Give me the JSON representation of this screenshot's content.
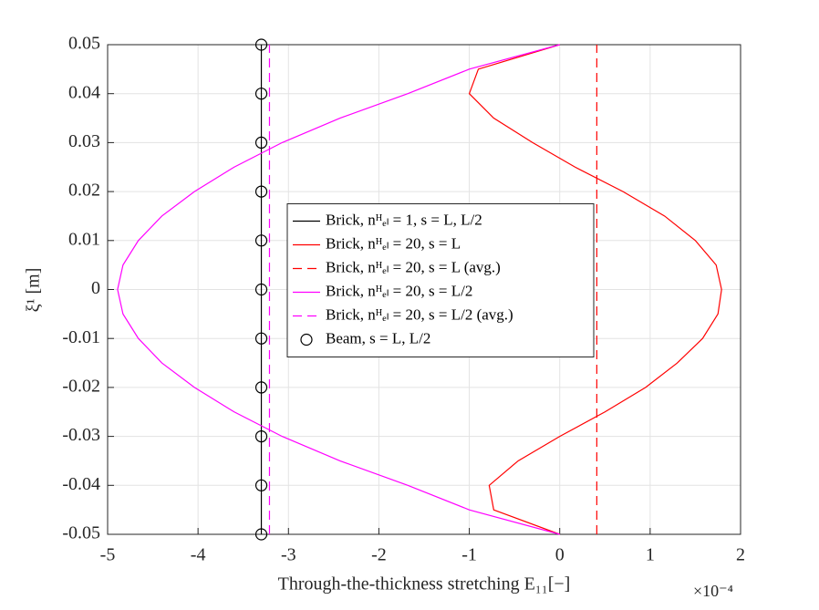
{
  "chart_data": {
    "type": "line",
    "xlabel": "Through-the-thickness stretching E₁₁[−]",
    "x_multiplier": "×10⁻⁴",
    "ylabel": "ξ¹ [m]",
    "xlim": [
      -5,
      2
    ],
    "xticks": [
      -5,
      -4,
      -3,
      -2,
      -1,
      0,
      1,
      2
    ],
    "ylim": [
      -0.05,
      0.05
    ],
    "yticks": [
      -0.05,
      -0.04,
      -0.03,
      -0.02,
      -0.01,
      0,
      0.01,
      0.02,
      0.03,
      0.04,
      0.05
    ],
    "grid": true,
    "legend_location": "center",
    "series": [
      {
        "name": "Brick, nᴴₑₗ = 1, s = L, L/2",
        "color": "#000000",
        "dash": "solid",
        "marker": "none",
        "x": [
          -3.3,
          -3.3
        ],
        "y": [
          -0.05,
          0.05
        ]
      },
      {
        "name": "Brick, nᴴₑₗ = 20, s = L",
        "color": "#ff0000",
        "dash": "solid",
        "marker": "none",
        "x": [
          0,
          -0.73,
          -0.78,
          -0.46,
          0,
          0.5,
          0.95,
          1.3,
          1.58,
          1.75,
          1.79,
          1.73,
          1.5,
          1.16,
          0.7,
          0.17,
          -0.3,
          -0.73,
          -1.0,
          -0.9,
          0
        ],
        "y": [
          -0.05,
          -0.045,
          -0.04,
          -0.035,
          -0.03,
          -0.025,
          -0.02,
          -0.015,
          -0.01,
          -0.005,
          0,
          0.005,
          0.01,
          0.015,
          0.02,
          0.025,
          0.03,
          0.035,
          0.04,
          0.045,
          0.05
        ]
      },
      {
        "name": "Brick, nᴴₑₗ = 20, s = L (avg.)",
        "color": "#ff0000",
        "dash": "dashed",
        "marker": "none",
        "x": [
          0.41,
          0.41
        ],
        "y": [
          -0.05,
          0.05
        ]
      },
      {
        "name": "Brick, nᴴₑₗ = 20, s = L/2",
        "color": "#ff00ff",
        "dash": "solid",
        "marker": "none",
        "x": [
          0,
          -1.0,
          -1.68,
          -2.43,
          -3.07,
          -3.6,
          -4.04,
          -4.4,
          -4.66,
          -4.83,
          -4.89,
          -4.83,
          -4.66,
          -4.4,
          -4.04,
          -3.6,
          -3.07,
          -2.43,
          -1.68,
          -1.0,
          0
        ],
        "y": [
          -0.05,
          -0.045,
          -0.04,
          -0.035,
          -0.03,
          -0.025,
          -0.02,
          -0.015,
          -0.01,
          -0.005,
          0,
          0.005,
          0.01,
          0.015,
          0.02,
          0.025,
          0.03,
          0.035,
          0.04,
          0.045,
          0.05
        ]
      },
      {
        "name": "Brick, nᴴₑₗ = 20, s = L/2 (avg.)",
        "color": "#ff00ff",
        "dash": "dashed",
        "marker": "none",
        "x": [
          -3.21,
          -3.21
        ],
        "y": [
          -0.05,
          0.05
        ]
      },
      {
        "name": "Beam, s = L, L/2",
        "color": "#000000",
        "dash": "none",
        "marker": "circle",
        "x": [
          -3.3,
          -3.3,
          -3.3,
          -3.3,
          -3.3,
          -3.3,
          -3.3,
          -3.3,
          -3.3,
          -3.3,
          -3.3
        ],
        "y": [
          -0.05,
          -0.04,
          -0.03,
          -0.02,
          -0.01,
          0,
          0.01,
          0.02,
          0.03,
          0.04,
          0.05
        ]
      }
    ]
  }
}
